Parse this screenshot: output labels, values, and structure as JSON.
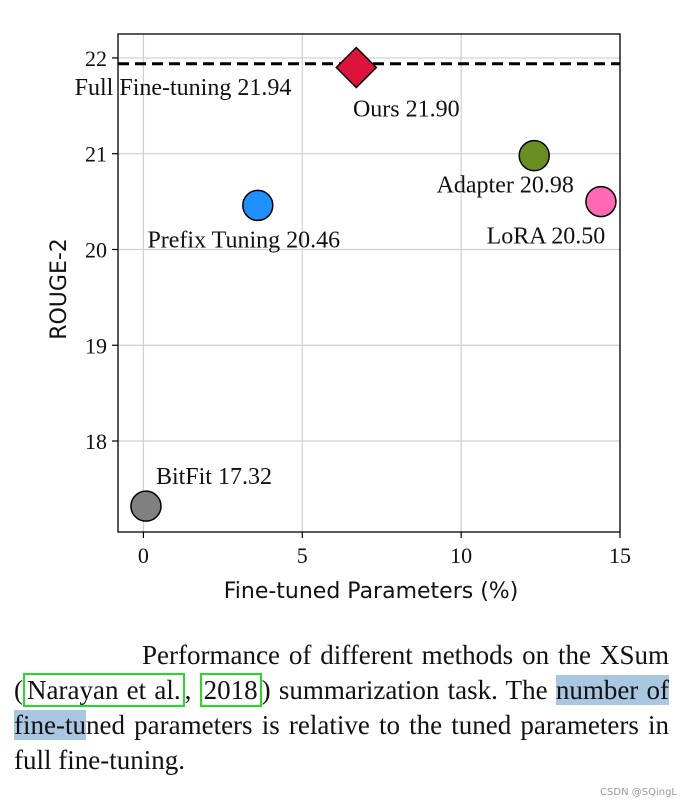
{
  "chart_data": {
    "type": "scatter",
    "xlabel": "Fine-tuned Parameters (%)",
    "ylabel": "ROUGE-2",
    "xlim": [
      -0.8,
      15
    ],
    "ylim": [
      17.05,
      22.25
    ],
    "xticks": [
      0,
      5,
      10,
      15
    ],
    "yticks": [
      18,
      19,
      20,
      21,
      22
    ],
    "grid": true,
    "reference_line": {
      "label": "Full Fine-tuning 21.94",
      "y": 21.94,
      "style": "dashed"
    },
    "points": [
      {
        "name": "Ours",
        "label": "Ours 21.90",
        "x": 6.7,
        "y": 21.9,
        "color": "#dc143c",
        "marker": "diamond"
      },
      {
        "name": "Adapter",
        "label": "Adapter 20.98",
        "x": 12.3,
        "y": 20.98,
        "color": "#6b8e23",
        "marker": "circle"
      },
      {
        "name": "LoRA",
        "label": "LoRA 20.50",
        "x": 14.4,
        "y": 20.5,
        "color": "#ff69b4",
        "marker": "circle"
      },
      {
        "name": "Prefix Tuning",
        "label": "Prefix Tuning 20.46",
        "x": 3.6,
        "y": 20.46,
        "color": "#1e90ff",
        "marker": "circle"
      },
      {
        "name": "BitFit",
        "label": "BitFit 17.32",
        "x": 0.08,
        "y": 17.32,
        "color": "#808080",
        "marker": "circle"
      }
    ]
  },
  "caption": {
    "part1": "Performance of different methods on the XSum (",
    "cite_author": "Narayan et al.",
    "sep": ", ",
    "cite_year": "2018",
    "part2": ") summarization task. The ",
    "highlight": "number of fine-tu",
    "part3": "ned parameters is relative to the tuned parameters in full fine-tuning."
  },
  "watermark": "CSDN @SQingL"
}
